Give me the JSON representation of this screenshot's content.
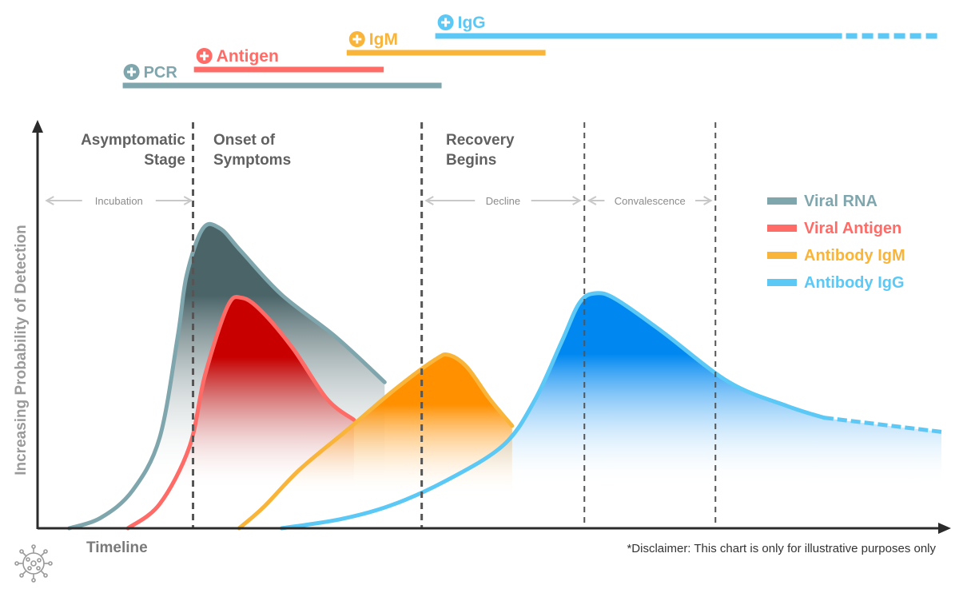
{
  "chart_data": {
    "type": "area",
    "title": "",
    "xlabel": "Timeline",
    "ylabel": "Increasing Probability of Detection",
    "disclaimer": "*Disclaimer: This chart is only for illustrative purposes only",
    "x_range": [
      0,
      100
    ],
    "y_range": [
      0,
      100
    ],
    "colors": {
      "viral_rna": "#7fa6ad",
      "viral_antigen": "#ff6b66",
      "igm": "#f9b43a",
      "igg": "#5bc8f5",
      "rna_fill_dark": "#4a6468",
      "antigen_fill_dark": "#c80000",
      "igm_fill_dark": "#ff9000",
      "igg_fill_dark": "#0088f0",
      "axis": "#2b2b2b",
      "stage_text": "#616161",
      "phase_text": "#8c8c8c",
      "phase_arrow": "#c8c8c8",
      "divider": "#555555"
    },
    "series": [
      {
        "name": "Viral RNA",
        "key": "viral_rna",
        "points": [
          [
            3.5,
            0
          ],
          [
            7,
            3.5
          ],
          [
            10.5,
            12.5
          ],
          [
            13.5,
            30
          ],
          [
            15.5,
            63.5
          ],
          [
            16.5,
            84
          ],
          [
            18.3,
            99.5
          ],
          [
            20.2,
            99.5
          ],
          [
            22.5,
            92
          ],
          [
            27,
            77.5
          ],
          [
            33,
            63.5
          ],
          [
            38.4,
            48.5
          ]
        ]
      },
      {
        "name": "Viral Antigen",
        "key": "viral_antigen",
        "points": [
          [
            10,
            0
          ],
          [
            13.5,
            8
          ],
          [
            16.8,
            27
          ],
          [
            18.5,
            50.5
          ],
          [
            21,
            73.5
          ],
          [
            22.6,
            76.5
          ],
          [
            24.8,
            72
          ],
          [
            28.3,
            59.5
          ],
          [
            32,
            43
          ],
          [
            35,
            36
          ]
        ]
      },
      {
        "name": "Antibody IgM",
        "key": "igm",
        "points": [
          [
            22.3,
            0
          ],
          [
            25,
            7
          ],
          [
            29,
            19.5
          ],
          [
            34,
            32
          ],
          [
            39.5,
            46
          ],
          [
            44,
            56
          ],
          [
            45.5,
            57.5
          ],
          [
            47.5,
            53.5
          ],
          [
            50,
            43
          ],
          [
            52.5,
            34
          ]
        ]
      },
      {
        "name": "Antibody IgG",
        "key": "igg",
        "points": [
          [
            27,
            0
          ],
          [
            33.5,
            3
          ],
          [
            39,
            7.5
          ],
          [
            45,
            15.5
          ],
          [
            51.5,
            27.5
          ],
          [
            55,
            42.5
          ],
          [
            58,
            62
          ],
          [
            60,
            75
          ],
          [
            61.8,
            78
          ],
          [
            64,
            76
          ],
          [
            69,
            65.5
          ],
          [
            76.5,
            48.5
          ],
          [
            83,
            40.5
          ],
          [
            87,
            36.7
          ],
          [
            100,
            32
          ]
        ]
      }
    ],
    "stage_dividers_x": [
      17.2,
      42.5,
      60.5,
      75
    ],
    "stages": [
      {
        "line1": "Asymptomatic",
        "line2": "Stage"
      },
      {
        "line1": "Onset of",
        "line2": "Symptoms"
      },
      {
        "line1": "Recovery",
        "line2": "Begins"
      }
    ],
    "phases": [
      {
        "label": "Incubation",
        "from_x": 1,
        "to_x": 17
      },
      {
        "label": "Decline",
        "from_x": 43,
        "to_x": 60
      },
      {
        "label": "Convalescence",
        "from_x": 61,
        "to_x": 74.5
      }
    ],
    "detection_windows": [
      {
        "label": "PCR",
        "key": "viral_rna",
        "start_x": 9.6,
        "end_x": 44.7,
        "row": 1
      },
      {
        "label": "Antigen",
        "key": "viral_antigen",
        "start_x": 17.3,
        "end_x": 38.3,
        "row": 2
      },
      {
        "label": "IgM",
        "key": "igm",
        "start_x": 34.2,
        "end_x": 56.2,
        "row": 3
      },
      {
        "label": "IgG",
        "key": "igg",
        "start_x": 44,
        "end_x": 100,
        "dashed_from_x": 89,
        "row": 4
      }
    ],
    "legend": {
      "placement": "right",
      "items": [
        {
          "label": "Viral RNA",
          "key": "viral_rna"
        },
        {
          "label": "Viral Antigen",
          "key": "viral_antigen"
        },
        {
          "label": "Antibody IgM",
          "key": "igm"
        },
        {
          "label": "Antibody IgG",
          "key": "igg"
        }
      ]
    }
  }
}
